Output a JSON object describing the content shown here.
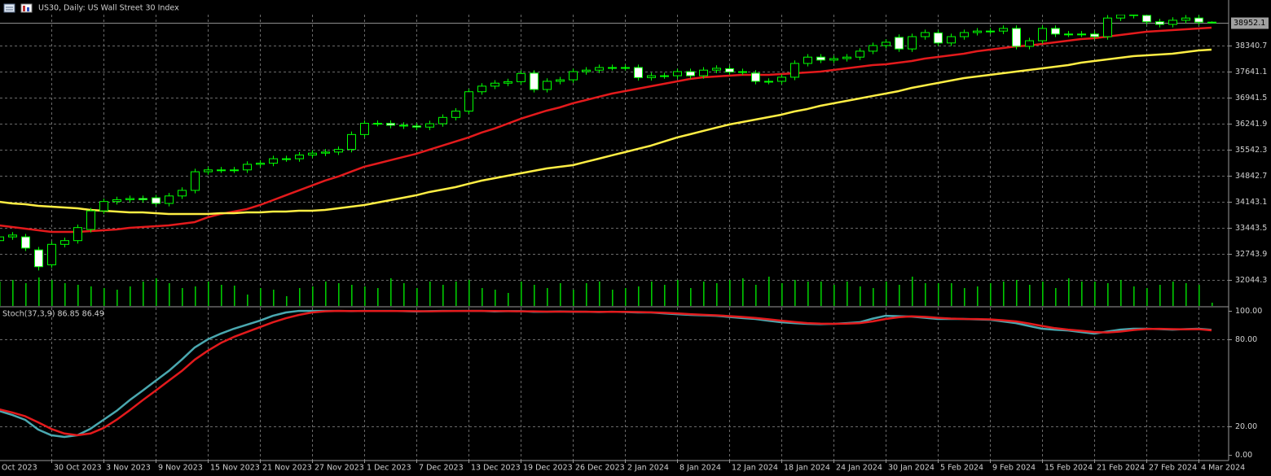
{
  "chart_data": [
    {
      "type": "candlestick",
      "title": "US30, Daily:  US Wall Street 30 Index",
      "categories": [
        "Oct 2023",
        null,
        null,
        null,
        "30 Oct 2023",
        null,
        null,
        null,
        "3 Nov 2023",
        null,
        null,
        null,
        "9 Nov 2023",
        null,
        null,
        null,
        "15 Nov 2023",
        null,
        null,
        null,
        "21 Nov 2023",
        null,
        null,
        null,
        "27 Nov 2023",
        null,
        null,
        null,
        "1 Dec 2023",
        null,
        null,
        null,
        "7 Dec 2023",
        null,
        null,
        null,
        "13 Dec 2023",
        null,
        null,
        null,
        "19 Dec 2023",
        null,
        null,
        null,
        "26 Dec 2023",
        null,
        null,
        null,
        "2 Jan 2024",
        null,
        null,
        null,
        "8 Jan 2024",
        null,
        null,
        null,
        "12 Jan 2024",
        null,
        null,
        null,
        "18 Jan 2024",
        null,
        null,
        null,
        "24 Jan 2024",
        null,
        null,
        null,
        "30 Jan 2024",
        null,
        null,
        null,
        "5 Feb 2024",
        null,
        null,
        null,
        "9 Feb 2024",
        null,
        null,
        null,
        "15 Feb 2024",
        null,
        null,
        null,
        "21 Feb 2024",
        null,
        null,
        null,
        "27 Feb 2024",
        null,
        null,
        null,
        "4 Mar 2024",
        null
      ],
      "open": [
        33100,
        33200,
        33200,
        32850,
        32450,
        33000,
        33100,
        33400,
        33900,
        34150,
        34200,
        34230,
        34250,
        34100,
        34300,
        34450,
        34950,
        35000,
        35000,
        35000,
        35150,
        35180,
        35300,
        35300,
        35400,
        35450,
        35480,
        35550,
        35950,
        36250,
        36250,
        36200,
        36180,
        36150,
        36240,
        36410,
        36580,
        37100,
        37250,
        37330,
        37370,
        37600,
        37160,
        37380,
        37420,
        37640,
        37680,
        37750,
        37750,
        37750,
        37480,
        37530,
        37530,
        37640,
        37530,
        37680,
        37720,
        37630,
        37600,
        37380,
        37380,
        37490,
        37860,
        38030,
        37950,
        37990,
        38030,
        38190,
        38340,
        38560,
        38250,
        38580,
        38680,
        38410,
        38580,
        38690,
        38730,
        38730,
        38800,
        38320,
        38470,
        38800,
        38650,
        38650,
        38650,
        38580,
        39080,
        39170,
        39150,
        38980,
        38910,
        39020,
        39080,
        38970
      ],
      "high": [
        33280,
        33330,
        33280,
        32930,
        33080,
        33180,
        33530,
        33980,
        34230,
        34280,
        34310,
        34310,
        34330,
        34380,
        34530,
        35030,
        35080,
        35080,
        35080,
        35230,
        35260,
        35380,
        35380,
        35480,
        35530,
        35560,
        35630,
        36030,
        36330,
        36330,
        36330,
        36280,
        36260,
        36320,
        36490,
        36660,
        37180,
        37330,
        37410,
        37450,
        37670,
        37680,
        37460,
        37500,
        37720,
        37760,
        37830,
        37830,
        37830,
        37830,
        37610,
        37610,
        37720,
        37720,
        37760,
        37810,
        37800,
        37720,
        37680,
        37460,
        37570,
        37940,
        38110,
        38110,
        38070,
        38110,
        38270,
        38420,
        38510,
        38640,
        38660,
        38770,
        38760,
        38660,
        38770,
        38810,
        38810,
        38880,
        38880,
        38550,
        38880,
        38880,
        38730,
        38730,
        38730,
        39160,
        39250,
        39250,
        39230,
        39060,
        39100,
        39160,
        39160,
        38990
      ],
      "low": [
        33020,
        33120,
        32820,
        32300,
        32370,
        32920,
        33020,
        33320,
        33820,
        34070,
        34120,
        34120,
        34020,
        34020,
        34220,
        34370,
        34870,
        34920,
        34920,
        34920,
        35070,
        35100,
        35220,
        35220,
        35320,
        35370,
        35400,
        35470,
        35870,
        36170,
        36120,
        36100,
        36070,
        36070,
        36160,
        36330,
        36500,
        37020,
        37170,
        37250,
        37290,
        37080,
        37080,
        37300,
        37340,
        37560,
        37600,
        37670,
        37670,
        37400,
        37400,
        37450,
        37450,
        37450,
        37450,
        37600,
        37550,
        37550,
        37300,
        37300,
        37300,
        37410,
        37780,
        37870,
        37870,
        37910,
        37950,
        38110,
        38260,
        38170,
        38170,
        38500,
        38330,
        38330,
        38500,
        38610,
        38650,
        38650,
        38240,
        38240,
        38390,
        38570,
        38570,
        38570,
        38500,
        38500,
        39000,
        39070,
        38900,
        38830,
        38830,
        38940,
        38890,
        38940
      ],
      "close": [
        33200,
        33250,
        32900,
        32400,
        33000,
        33100,
        33450,
        33900,
        34150,
        34200,
        34230,
        34200,
        34100,
        34300,
        34450,
        34950,
        35000,
        35000,
        35000,
        35150,
        35180,
        35300,
        35300,
        35400,
        35450,
        35480,
        35550,
        35950,
        36250,
        36250,
        36200,
        36180,
        36150,
        36240,
        36410,
        36580,
        37100,
        37250,
        37330,
        37370,
        37590,
        37160,
        37380,
        37420,
        37640,
        37680,
        37750,
        37750,
        37750,
        37480,
        37530,
        37530,
        37640,
        37530,
        37680,
        37730,
        37630,
        37640,
        37380,
        37380,
        37490,
        37860,
        38030,
        37950,
        37990,
        38030,
        38190,
        38340,
        38430,
        38250,
        38580,
        38690,
        38410,
        38580,
        38690,
        38730,
        38730,
        38800,
        38320,
        38470,
        38800,
        38650,
        38650,
        38650,
        38580,
        39080,
        39170,
        39150,
        38980,
        38910,
        39020,
        39080,
        38970,
        38952.1
      ],
      "up_color": "#00ff00",
      "down_color": "#ffffff",
      "lines": [
        {
          "color": "#e31a1c",
          "values": [
            33510,
            33466,
            33422,
            33379,
            33335,
            33335,
            33335,
            33357,
            33379,
            33401,
            33444,
            33466,
            33488,
            33510,
            33553,
            33597,
            33728,
            33816,
            33881,
            33947,
            34056,
            34187,
            34319,
            34450,
            34581,
            34712,
            34821,
            34953,
            35084,
            35171,
            35259,
            35346,
            35433,
            35543,
            35652,
            35761,
            35871,
            36002,
            36111,
            36242,
            36373,
            36483,
            36592,
            36679,
            36789,
            36876,
            36964,
            37051,
            37117,
            37182,
            37248,
            37313,
            37379,
            37445,
            37488,
            37510,
            37532,
            37554,
            37554,
            37554,
            37576,
            37598,
            37619,
            37641,
            37685,
            37729,
            37772,
            37816,
            37838,
            37882,
            37925,
            37991,
            38035,
            38079,
            38122,
            38188,
            38232,
            38275,
            38319,
            38341,
            38385,
            38428,
            38472,
            38516,
            38538,
            38581,
            38625,
            38669,
            38712,
            38734,
            38756,
            38778,
            38800,
            38822
          ]
        },
        {
          "color": "#ffee44",
          "values": [
            34144,
            34100,
            34078,
            34034,
            34013,
            33991,
            33969,
            33925,
            33903,
            33881,
            33860,
            33860,
            33838,
            33816,
            33816,
            33816,
            33816,
            33838,
            33838,
            33860,
            33860,
            33881,
            33881,
            33903,
            33903,
            33925,
            33969,
            34013,
            34056,
            34122,
            34187,
            34253,
            34319,
            34406,
            34472,
            34537,
            34625,
            34712,
            34778,
            34843,
            34909,
            34974,
            35040,
            35084,
            35127,
            35215,
            35302,
            35390,
            35477,
            35565,
            35652,
            35761,
            35871,
            35958,
            36046,
            36133,
            36220,
            36286,
            36352,
            36417,
            36483,
            36570,
            36636,
            36723,
            36789,
            36854,
            36920,
            36986,
            37051,
            37117,
            37204,
            37270,
            37335,
            37401,
            37466,
            37510,
            37554,
            37598,
            37641,
            37685,
            37729,
            37772,
            37816,
            37882,
            37925,
            37969,
            38013,
            38057,
            38079,
            38100,
            38122,
            38166,
            38210,
            38232
          ]
        }
      ],
      "volume": {
        "color": "#00c800",
        "ylim": [
          0,
          100
        ],
        "values": [
          30,
          32,
          28,
          35,
          32,
          28,
          26,
          24,
          22,
          20,
          24,
          30,
          34,
          28,
          22,
          24,
          30,
          26,
          25,
          14,
          22,
          20,
          12,
          22,
          24,
          30,
          28,
          26,
          24,
          22,
          34,
          28,
          22,
          30,
          26,
          30,
          32,
          22,
          20,
          16,
          30,
          26,
          22,
          28,
          20,
          28,
          30,
          20,
          22,
          24,
          30,
          26,
          32,
          22,
          30,
          28,
          32,
          34,
          26,
          36,
          28,
          32,
          30,
          30,
          26,
          30,
          24,
          22,
          30,
          26,
          36,
          28,
          28,
          28,
          22,
          24,
          28,
          30,
          32,
          26,
          30,
          22,
          34,
          30,
          30,
          28,
          32,
          24,
          22,
          26,
          30,
          28,
          26,
          4
        ]
      },
      "ylim": [
        31345,
        39171
      ],
      "yticks": [
        38340.7,
        37641.1,
        36941.5,
        36241.9,
        35542.3,
        34842.7,
        34143.1,
        33443.5,
        32743.9,
        32044.3
      ],
      "last_price": 38952.1,
      "grid": true
    },
    {
      "type": "line",
      "title": "Stoch(37,3,9) 86.85 86.49",
      "series": [
        {
          "color": "#4aa8b0",
          "values": [
            30.5,
            27.7,
            24.3,
            17.5,
            13.6,
            12.4,
            13.6,
            18.1,
            24.3,
            30.5,
            37.9,
            44.6,
            51.4,
            58.2,
            66.1,
            74.6,
            80.2,
            84.2,
            87.6,
            90.4,
            93.2,
            96.6,
            98.9,
            100,
            100,
            100,
            100,
            99.8,
            100,
            100,
            100,
            99.8,
            99.6,
            99.8,
            100,
            100,
            100,
            100,
            99.6,
            99.8,
            99.8,
            99.4,
            99.4,
            99.6,
            99.4,
            99.4,
            99.2,
            99.4,
            99.2,
            98.9,
            98.9,
            98.3,
            97.7,
            97.2,
            96.9,
            96.6,
            95.8,
            95.0,
            94.4,
            93.2,
            92.1,
            91.5,
            91.0,
            90.8,
            91.0,
            91.5,
            92.1,
            94.6,
            96.6,
            96.3,
            96.0,
            95.2,
            94.4,
            94.4,
            94.4,
            94.1,
            93.8,
            92.7,
            91.5,
            89.5,
            87.6,
            86.9,
            86.4,
            85.3,
            84.2,
            85.6,
            87.0,
            87.6,
            87.6,
            87.3,
            87.0,
            87.3,
            87.6,
            86.85
          ]
        },
        {
          "color": "#e31a1c",
          "values": [
            31.6,
            29.4,
            26.8,
            22.5,
            18.0,
            14.8,
            13.6,
            14.8,
            18.6,
            24.3,
            30.9,
            37.9,
            44.6,
            51.4,
            58.2,
            66.1,
            72.3,
            77.7,
            81.9,
            85.3,
            88.7,
            92.1,
            94.9,
            97.2,
            98.9,
            99.7,
            100,
            99.9,
            99.9,
            99.9,
            99.9,
            99.9,
            99.8,
            99.7,
            99.8,
            99.9,
            100,
            100,
            99.9,
            99.8,
            99.7,
            99.7,
            99.5,
            99.5,
            99.5,
            99.4,
            99.3,
            99.3,
            99.3,
            99.2,
            99.0,
            98.7,
            98.3,
            97.7,
            97.3,
            96.9,
            96.4,
            95.8,
            95.1,
            94.2,
            93.2,
            92.3,
            91.5,
            91.1,
            91.0,
            91.1,
            91.5,
            92.7,
            94.4,
            95.6,
            96.2,
            95.9,
            95.2,
            94.7,
            94.4,
            94.3,
            94.1,
            93.5,
            92.7,
            91.2,
            89.5,
            88.0,
            87.0,
            86.2,
            85.3,
            85.0,
            85.6,
            86.7,
            87.4,
            87.5,
            87.3,
            87.2,
            87.3,
            86.49
          ]
        }
      ],
      "levels": [
        80,
        20
      ],
      "ylim": [
        -3.4,
        102.3
      ],
      "yticks": [
        {
          "value": 100,
          "label": "100.00"
        },
        {
          "value": 80,
          "label": "80.00"
        },
        {
          "value": 20,
          "label": "20.00"
        },
        {
          "value": 0,
          "label": "0.00"
        }
      ]
    }
  ]
}
